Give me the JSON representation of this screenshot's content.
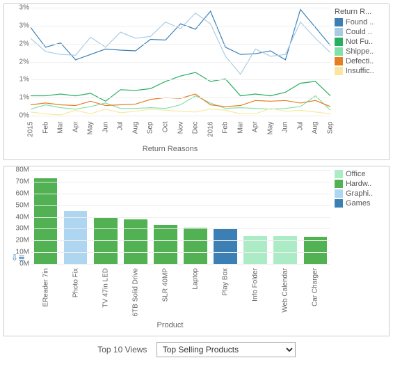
{
  "line_chart": {
    "type": "line",
    "x_title": "Return Reasons",
    "legend_title": "Return R...",
    "x_labels": [
      "2015",
      "Feb",
      "Mar",
      "Apr",
      "May",
      "Jun",
      "Jul",
      "Aug",
      "Sep",
      "Oct",
      "Nov",
      "Dec",
      "2016",
      "Feb",
      "Mar",
      "Apr",
      "May",
      "Jun",
      "Jul",
      "Aug",
      "Sep"
    ],
    "y_ticks": [
      0,
      0.5,
      1,
      1.5,
      2,
      2.5,
      3
    ],
    "y_tick_labels": [
      "0%",
      "1%",
      "1%",
      "2%",
      "2%",
      "3%",
      "3%"
    ],
    "ylim": [
      0,
      3
    ],
    "grid_color": "#eeeeee",
    "series": [
      {
        "name": "Found ..",
        "color": "#3b7fb5",
        "values": [
          2.45,
          1.9,
          2.02,
          1.55,
          1.7,
          1.85,
          1.82,
          1.8,
          2.12,
          2.1,
          2.55,
          2.4,
          2.9,
          1.9,
          1.7,
          1.72,
          1.8,
          1.55,
          2.95,
          2.45,
          1.95
        ]
      },
      {
        "name": "Could ..",
        "color": "#a9cce3",
        "values": [
          2.15,
          1.78,
          1.7,
          1.68,
          2.18,
          1.9,
          2.32,
          2.15,
          2.2,
          2.6,
          2.42,
          2.85,
          2.55,
          1.65,
          1.15,
          1.85,
          1.65,
          1.7,
          2.6,
          2.15,
          1.75
        ]
      },
      {
        "name": "Not Fu..",
        "color": "#27ae60",
        "values": [
          0.55,
          0.55,
          0.6,
          0.55,
          0.62,
          0.4,
          0.72,
          0.7,
          0.75,
          0.95,
          1.1,
          1.2,
          0.95,
          1.02,
          0.55,
          0.6,
          0.55,
          0.65,
          0.9,
          0.95,
          0.55
        ]
      },
      {
        "name": "Shippe..",
        "color": "#82e0aa",
        "values": [
          0.18,
          0.3,
          0.22,
          0.18,
          0.25,
          0.35,
          0.2,
          0.2,
          0.22,
          0.2,
          0.3,
          0.55,
          0.35,
          0.2,
          0.22,
          0.2,
          0.18,
          0.2,
          0.25,
          0.55,
          0.15
        ]
      },
      {
        "name": "Defecti..",
        "color": "#e67e22",
        "values": [
          0.3,
          0.35,
          0.3,
          0.28,
          0.4,
          0.28,
          0.3,
          0.32,
          0.45,
          0.5,
          0.48,
          0.6,
          0.3,
          0.25,
          0.28,
          0.42,
          0.4,
          0.42,
          0.35,
          0.42,
          0.25
        ]
      },
      {
        "name": "Insuffic..",
        "color": "#f9e79f",
        "values": [
          0.1,
          0.05,
          0.02,
          0.15,
          0.05,
          0.18,
          0.08,
          0.12,
          0.18,
          0.15,
          0.12,
          0.1,
          0.18,
          0.15,
          0.05,
          0.05,
          0.2,
          0.12,
          0.15,
          0.1,
          0.05
        ]
      }
    ]
  },
  "bar_chart": {
    "type": "bar",
    "x_title": "Product",
    "ylim": [
      0,
      80
    ],
    "y_ticks": [
      0,
      10,
      20,
      30,
      40,
      50,
      60,
      70,
      80
    ],
    "y_tick_labels": [
      "0M",
      "10M",
      "20M",
      "30M",
      "40M",
      "50M",
      "60M",
      "70M",
      "80M"
    ],
    "grid_color": "#eeeeee",
    "legend": [
      {
        "name": "Office",
        "color": "#abebc6"
      },
      {
        "name": "Hardw..",
        "color": "#52b152"
      },
      {
        "name": "Graphi..",
        "color": "#aed6f1"
      },
      {
        "name": "Games",
        "color": "#3b7fb5"
      }
    ],
    "bars": [
      {
        "label": "EReader 7in",
        "value": 73,
        "color": "#52b152"
      },
      {
        "label": "Photo Fix",
        "value": 45,
        "color": "#aed6f1"
      },
      {
        "label": "TV 47in LED",
        "value": 40,
        "color": "#52b152"
      },
      {
        "label": "6TB Solid Drive",
        "value": 38,
        "color": "#52b152"
      },
      {
        "label": "SLR 40MP",
        "value": 33,
        "color": "#52b152"
      },
      {
        "label": "Laptop",
        "value": 31,
        "color": "#52b152"
      },
      {
        "label": "Play Box",
        "value": 30,
        "color": "#3b7fb5"
      },
      {
        "label": "Info Folder",
        "value": 24,
        "color": "#abebc6"
      },
      {
        "label": "Web Calendar",
        "value": 24,
        "color": "#abebc6"
      },
      {
        "label": "Car Charger",
        "value": 23,
        "color": "#52b152"
      }
    ]
  },
  "controls": {
    "label": "Top 10 Views",
    "selected": "Top Selling Products"
  }
}
